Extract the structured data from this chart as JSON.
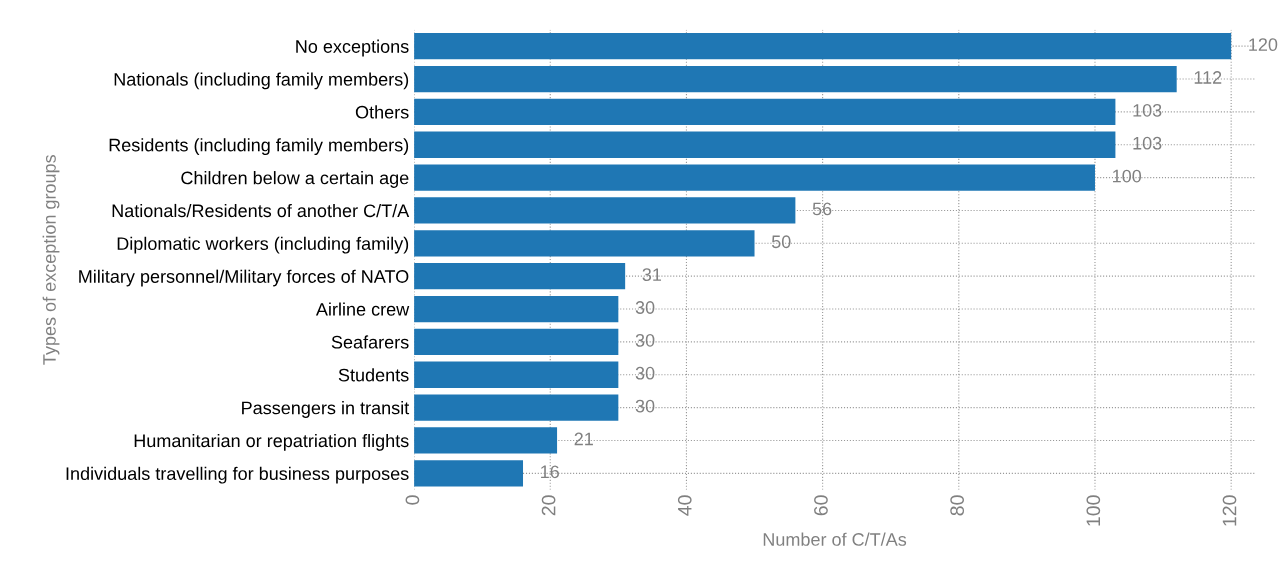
{
  "chart_data": {
    "type": "bar",
    "orientation": "horizontal",
    "xlabel": "Number of C/T/As",
    "ylabel": "Types of exception groups",
    "categories": [
      "No exceptions",
      "Nationals (including family members)",
      "Others",
      "Residents (including family members)",
      "Children below a certain age",
      "Nationals/Residents of another C/T/A",
      "Diplomatic workers (including family)",
      "Military personnel/Military forces of NATO",
      "Airline crew",
      "Seafarers",
      "Students",
      "Passengers in transit",
      "Humanitarian or repatriation flights",
      "Individuals travelling for business purposes"
    ],
    "values": [
      120,
      112,
      103,
      103,
      100,
      56,
      50,
      31,
      30,
      30,
      30,
      30,
      21,
      16
    ],
    "color": "#1f77b4",
    "xlim": [
      0,
      123.5
    ],
    "xticks": [
      0,
      20,
      40,
      60,
      80,
      100,
      120
    ],
    "grid": true,
    "data_labels": true
  }
}
